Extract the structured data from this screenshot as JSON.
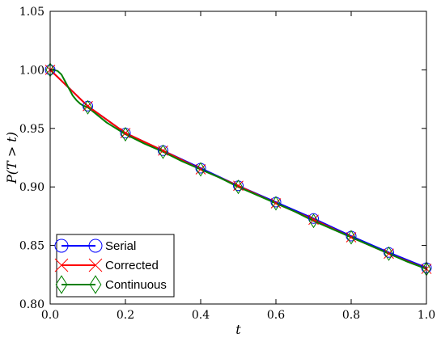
{
  "chart_data": {
    "type": "line",
    "xlabel": "t",
    "ylabel": "P(T > t)",
    "xlim": [
      0.0,
      1.0
    ],
    "ylim": [
      0.8,
      1.05
    ],
    "x_ticks": [
      "0.0",
      "0.2",
      "0.4",
      "0.6",
      "0.8",
      "1.0"
    ],
    "y_ticks": [
      "0.80",
      "0.85",
      "0.90",
      "0.95",
      "1.00",
      "1.05"
    ],
    "grid": false,
    "legend_position": "lower-left",
    "x": [
      0.0,
      0.1,
      0.2,
      0.3,
      0.4,
      0.5,
      0.6,
      0.7,
      0.8,
      0.9,
      1.0
    ],
    "series": [
      {
        "name": "Serial",
        "color": "#0000ff",
        "marker": "circle",
        "values": [
          1.0,
          0.969,
          0.946,
          0.931,
          0.916,
          0.901,
          0.887,
          0.873,
          0.858,
          0.844,
          0.831
        ]
      },
      {
        "name": "Corrected",
        "color": "#ff0000",
        "marker": "x",
        "values": [
          1.0,
          0.969,
          0.946,
          0.931,
          0.915,
          0.901,
          0.886,
          0.872,
          0.857,
          0.843,
          0.83
        ]
      },
      {
        "name": "Continuous",
        "color": "#008000",
        "marker": "diamond",
        "curve_x": [
          0.0,
          0.01,
          0.02,
          0.03,
          0.04,
          0.05,
          0.06,
          0.07,
          0.08,
          0.09,
          0.1,
          0.15,
          0.2,
          0.25,
          0.3,
          0.35,
          0.4,
          0.45,
          0.5,
          0.55,
          0.6,
          0.65,
          0.7,
          0.75,
          0.8,
          0.85,
          0.9,
          0.95,
          1.0
        ],
        "curve_y": [
          1.0,
          1.0,
          0.999,
          0.996,
          0.99,
          0.984,
          0.978,
          0.974,
          0.971,
          0.969,
          0.968,
          0.955,
          0.945,
          0.937,
          0.93,
          0.922,
          0.915,
          0.908,
          0.9,
          0.893,
          0.886,
          0.879,
          0.871,
          0.864,
          0.857,
          0.85,
          0.843,
          0.836,
          0.83
        ],
        "values": [
          1.0,
          0.968,
          0.945,
          0.93,
          0.915,
          0.9,
          0.886,
          0.871,
          0.857,
          0.843,
          0.83
        ]
      }
    ]
  }
}
